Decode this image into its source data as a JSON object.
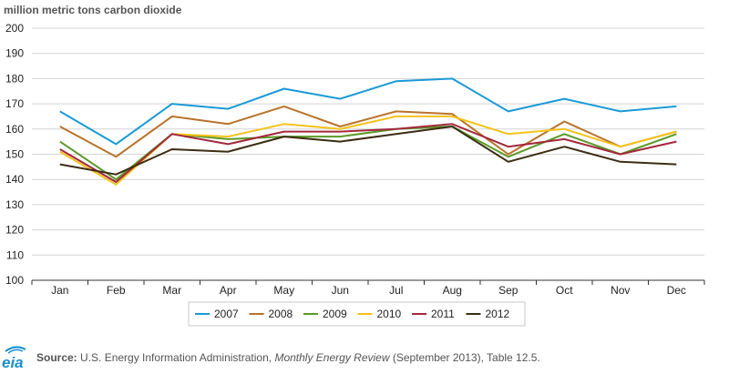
{
  "chart_data": {
    "type": "line",
    "ylabel": "million metric tons carbon dioxide",
    "ylim": [
      100,
      200
    ],
    "yticks": [
      100,
      110,
      120,
      130,
      140,
      150,
      160,
      170,
      180,
      190,
      200
    ],
    "categories": [
      "Jan",
      "Feb",
      "Mar",
      "Apr",
      "May",
      "Jun",
      "Jul",
      "Aug",
      "Sep",
      "Oct",
      "Nov",
      "Dec"
    ],
    "grid": true,
    "legend_position": "bottom",
    "series": [
      {
        "name": "2007",
        "color": "#1a9ad6",
        "values": [
          167,
          154,
          170,
          168,
          176,
          172,
          179,
          180,
          167,
          172,
          167,
          169
        ]
      },
      {
        "name": "2008",
        "color": "#b8732a",
        "values": [
          161,
          149,
          165,
          162,
          169,
          161,
          167,
          166,
          150,
          163,
          153,
          159
        ]
      },
      {
        "name": "2009",
        "color": "#5a9a28",
        "values": [
          155,
          140,
          158,
          156,
          157,
          157,
          160,
          161,
          149,
          158,
          150,
          158
        ]
      },
      {
        "name": "2010",
        "color": "#f5c21b",
        "values": [
          151,
          138,
          158,
          157,
          162,
          160,
          165,
          165,
          158,
          160,
          153,
          159
        ]
      },
      {
        "name": "2011",
        "color": "#a3283c",
        "values": [
          152,
          139,
          158,
          154,
          159,
          159,
          160,
          162,
          153,
          156,
          150,
          155
        ]
      },
      {
        "name": "2012",
        "color": "#3b2d12",
        "values": [
          146,
          142,
          152,
          151,
          157,
          155,
          158,
          161,
          147,
          153,
          147,
          146
        ]
      }
    ]
  },
  "source": {
    "label": "Source:",
    "text_before": " U.S. Energy Information Administration, ",
    "publication": "Monthly Energy Review",
    "text_after": " (September 2013), Table 12.5."
  },
  "logo": {
    "text": "eia",
    "color": "#1a8fd0"
  }
}
